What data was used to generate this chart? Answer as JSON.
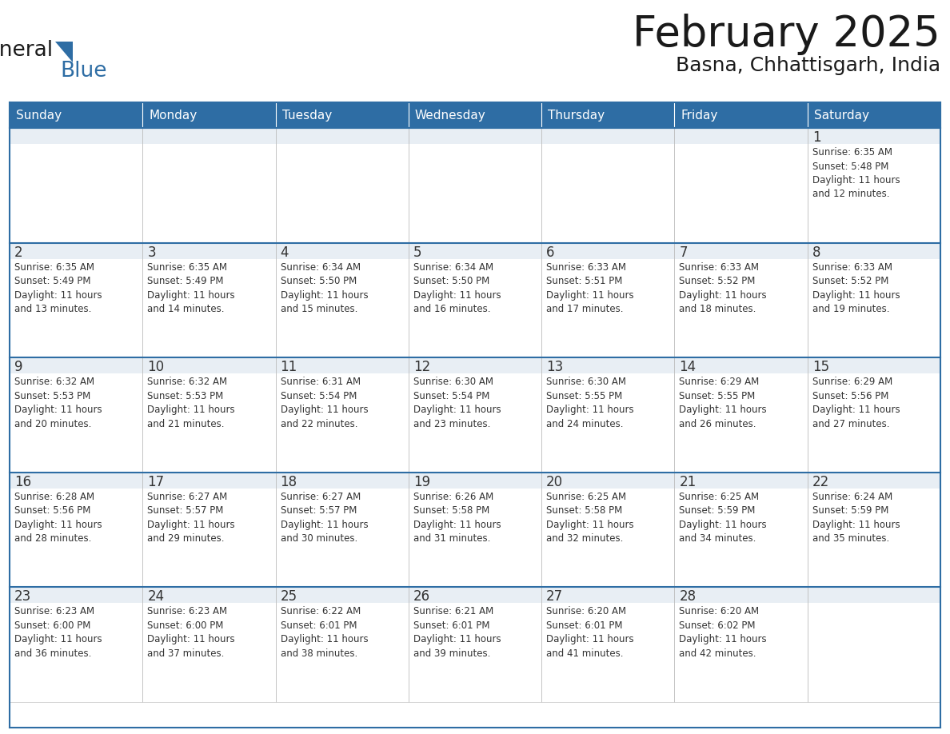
{
  "title": "February 2025",
  "subtitle": "Basna, Chhattisgarh, India",
  "header_bg": "#2E6DA4",
  "header_text_color": "#FFFFFF",
  "cell_top_bg": "#E8EEF4",
  "cell_body_bg": "#FFFFFF",
  "day_number_color": "#333333",
  "text_color": "#333333",
  "row_border_color": "#2E6DA4",
  "cell_border_color": "#CCCCCC",
  "days_of_week": [
    "Sunday",
    "Monday",
    "Tuesday",
    "Wednesday",
    "Thursday",
    "Friday",
    "Saturday"
  ],
  "weeks": [
    [
      {
        "day": null,
        "info": null
      },
      {
        "day": null,
        "info": null
      },
      {
        "day": null,
        "info": null
      },
      {
        "day": null,
        "info": null
      },
      {
        "day": null,
        "info": null
      },
      {
        "day": null,
        "info": null
      },
      {
        "day": "1",
        "info": "Sunrise: 6:35 AM\nSunset: 5:48 PM\nDaylight: 11 hours\nand 12 minutes."
      }
    ],
    [
      {
        "day": "2",
        "info": "Sunrise: 6:35 AM\nSunset: 5:49 PM\nDaylight: 11 hours\nand 13 minutes."
      },
      {
        "day": "3",
        "info": "Sunrise: 6:35 AM\nSunset: 5:49 PM\nDaylight: 11 hours\nand 14 minutes."
      },
      {
        "day": "4",
        "info": "Sunrise: 6:34 AM\nSunset: 5:50 PM\nDaylight: 11 hours\nand 15 minutes."
      },
      {
        "day": "5",
        "info": "Sunrise: 6:34 AM\nSunset: 5:50 PM\nDaylight: 11 hours\nand 16 minutes."
      },
      {
        "day": "6",
        "info": "Sunrise: 6:33 AM\nSunset: 5:51 PM\nDaylight: 11 hours\nand 17 minutes."
      },
      {
        "day": "7",
        "info": "Sunrise: 6:33 AM\nSunset: 5:52 PM\nDaylight: 11 hours\nand 18 minutes."
      },
      {
        "day": "8",
        "info": "Sunrise: 6:33 AM\nSunset: 5:52 PM\nDaylight: 11 hours\nand 19 minutes."
      }
    ],
    [
      {
        "day": "9",
        "info": "Sunrise: 6:32 AM\nSunset: 5:53 PM\nDaylight: 11 hours\nand 20 minutes."
      },
      {
        "day": "10",
        "info": "Sunrise: 6:32 AM\nSunset: 5:53 PM\nDaylight: 11 hours\nand 21 minutes."
      },
      {
        "day": "11",
        "info": "Sunrise: 6:31 AM\nSunset: 5:54 PM\nDaylight: 11 hours\nand 22 minutes."
      },
      {
        "day": "12",
        "info": "Sunrise: 6:30 AM\nSunset: 5:54 PM\nDaylight: 11 hours\nand 23 minutes."
      },
      {
        "day": "13",
        "info": "Sunrise: 6:30 AM\nSunset: 5:55 PM\nDaylight: 11 hours\nand 24 minutes."
      },
      {
        "day": "14",
        "info": "Sunrise: 6:29 AM\nSunset: 5:55 PM\nDaylight: 11 hours\nand 26 minutes."
      },
      {
        "day": "15",
        "info": "Sunrise: 6:29 AM\nSunset: 5:56 PM\nDaylight: 11 hours\nand 27 minutes."
      }
    ],
    [
      {
        "day": "16",
        "info": "Sunrise: 6:28 AM\nSunset: 5:56 PM\nDaylight: 11 hours\nand 28 minutes."
      },
      {
        "day": "17",
        "info": "Sunrise: 6:27 AM\nSunset: 5:57 PM\nDaylight: 11 hours\nand 29 minutes."
      },
      {
        "day": "18",
        "info": "Sunrise: 6:27 AM\nSunset: 5:57 PM\nDaylight: 11 hours\nand 30 minutes."
      },
      {
        "day": "19",
        "info": "Sunrise: 6:26 AM\nSunset: 5:58 PM\nDaylight: 11 hours\nand 31 minutes."
      },
      {
        "day": "20",
        "info": "Sunrise: 6:25 AM\nSunset: 5:58 PM\nDaylight: 11 hours\nand 32 minutes."
      },
      {
        "day": "21",
        "info": "Sunrise: 6:25 AM\nSunset: 5:59 PM\nDaylight: 11 hours\nand 34 minutes."
      },
      {
        "day": "22",
        "info": "Sunrise: 6:24 AM\nSunset: 5:59 PM\nDaylight: 11 hours\nand 35 minutes."
      }
    ],
    [
      {
        "day": "23",
        "info": "Sunrise: 6:23 AM\nSunset: 6:00 PM\nDaylight: 11 hours\nand 36 minutes."
      },
      {
        "day": "24",
        "info": "Sunrise: 6:23 AM\nSunset: 6:00 PM\nDaylight: 11 hours\nand 37 minutes."
      },
      {
        "day": "25",
        "info": "Sunrise: 6:22 AM\nSunset: 6:01 PM\nDaylight: 11 hours\nand 38 minutes."
      },
      {
        "day": "26",
        "info": "Sunrise: 6:21 AM\nSunset: 6:01 PM\nDaylight: 11 hours\nand 39 minutes."
      },
      {
        "day": "27",
        "info": "Sunrise: 6:20 AM\nSunset: 6:01 PM\nDaylight: 11 hours\nand 41 minutes."
      },
      {
        "day": "28",
        "info": "Sunrise: 6:20 AM\nSunset: 6:02 PM\nDaylight: 11 hours\nand 42 minutes."
      },
      {
        "day": null,
        "info": null
      }
    ]
  ],
  "logo_text_general": "General",
  "logo_text_blue": "Blue",
  "logo_color_general": "#1a1a1a",
  "logo_color_blue": "#2E6DA4",
  "logo_triangle_color": "#2E6DA4",
  "fig_width": 11.88,
  "fig_height": 9.18,
  "dpi": 100
}
